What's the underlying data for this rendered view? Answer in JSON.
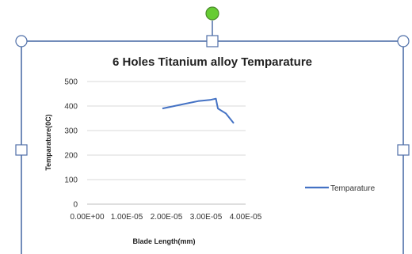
{
  "colors": {
    "series": "#4472c4",
    "selection_frame": "#4f6fa8",
    "grid": "#d9d9d9",
    "rotate_handle": "#66cc33"
  },
  "chart_data": {
    "type": "line",
    "title": "6 Holes Titanium alloy Temparature",
    "xlabel": "Blade Length(mm)",
    "ylabel": "Temparature(0C)",
    "xlim": [
      0,
      4e-05
    ],
    "ylim": [
      0,
      500
    ],
    "x_ticks": [
      "0.00E+00",
      "1.00E-05",
      "2.00E-05",
      "3.00E-05",
      "4.00E-05"
    ],
    "y_ticks": [
      "0",
      "100",
      "200",
      "300",
      "400",
      "500"
    ],
    "grid": true,
    "legend": "right",
    "series": [
      {
        "name": "Temparature",
        "x": [
          1.9e-05,
          2.2e-05,
          2.5e-05,
          2.8e-05,
          3.1e-05,
          3.25e-05,
          3.3e-05,
          3.5e-05,
          3.7e-05
        ],
        "y": [
          390,
          400,
          410,
          420,
          425,
          430,
          390,
          370,
          330
        ]
      }
    ]
  }
}
